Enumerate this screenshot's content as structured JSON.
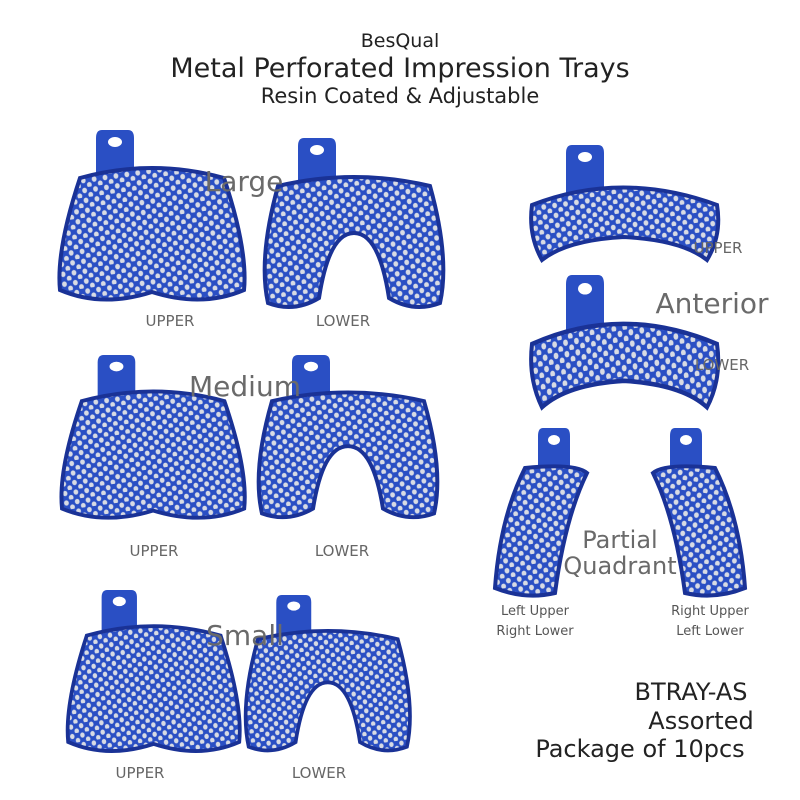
{
  "header": {
    "brand": "BesQual",
    "title": "Metal Perforated Impression Trays",
    "subtitle": "Resin Coated  & Adjustable"
  },
  "groups": {
    "large": {
      "label": "Large",
      "upper": "UPPER",
      "lower": "LOWER"
    },
    "medium": {
      "label": "Medium",
      "upper": "UPPER",
      "lower": "LOWER"
    },
    "small": {
      "label": "Small",
      "upper": "UPPER",
      "lower": "LOWER"
    },
    "anterior": {
      "label": "Anterior",
      "upper": "UPPER",
      "lower": "LOWER"
    },
    "partial": {
      "label_line1": "Partial",
      "label_line2": "Quadrant",
      "left_line1": "Left Upper",
      "left_line2": "Right Lower",
      "right_line1": "Right Upper",
      "right_line2": "Left Lower"
    }
  },
  "product": {
    "code": "BTRAY-AS",
    "name": "Assorted",
    "package": "Package of 10pcs"
  },
  "colors": {
    "tray": "#2a4fc4",
    "tray_dark": "#1a3296",
    "hole": "#d8dbe4",
    "label": "#6a6a6a"
  }
}
